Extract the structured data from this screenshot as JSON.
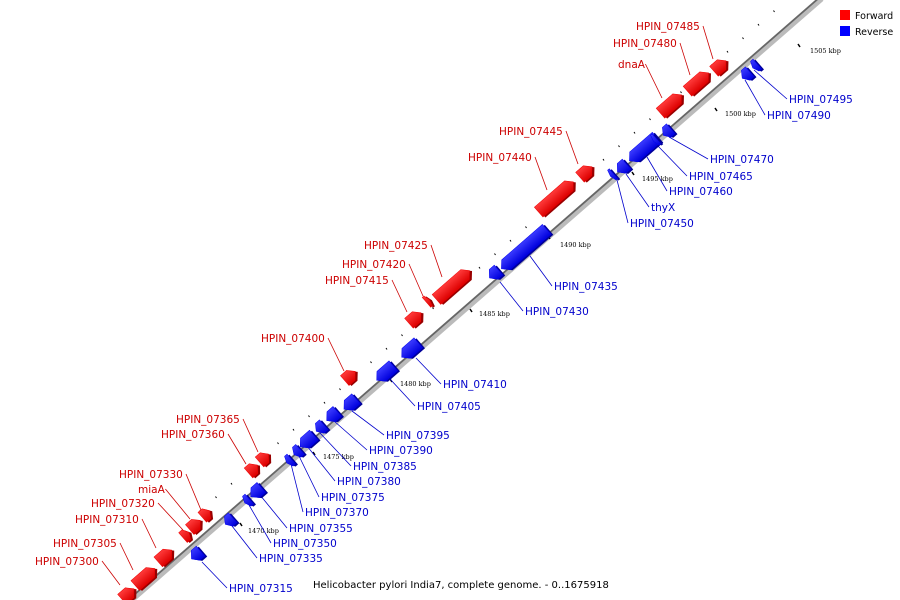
{
  "legend": [
    {
      "label": "Forward",
      "color": "#ff0000"
    },
    {
      "label": "Reverse",
      "color": "#0000ff"
    }
  ],
  "caption": "Helicobacter pylori India7, complete genome. - 0..1675918",
  "tick_labels": [
    "1470 kbp",
    "1475 kbp",
    "1480 kbp",
    "1485 kbp",
    "1490 kbp",
    "1495 kbp",
    "1500 kbp",
    "1505 kbp"
  ],
  "genes": [
    {
      "name": "HPIN_07300",
      "strand": "forward"
    },
    {
      "name": "HPIN_07305",
      "strand": "forward"
    },
    {
      "name": "HPIN_07310",
      "strand": "forward"
    },
    {
      "name": "HPIN_07315",
      "strand": "reverse"
    },
    {
      "name": "HPIN_07320",
      "strand": "forward"
    },
    {
      "name": "miaA",
      "strand": "forward"
    },
    {
      "name": "HPIN_07330",
      "strand": "forward"
    },
    {
      "name": "HPIN_07335",
      "strand": "reverse"
    },
    {
      "name": "HPIN_07350",
      "strand": "reverse"
    },
    {
      "name": "HPIN_07355",
      "strand": "reverse"
    },
    {
      "name": "HPIN_07360",
      "strand": "forward"
    },
    {
      "name": "HPIN_07365",
      "strand": "forward"
    },
    {
      "name": "HPIN_07370",
      "strand": "reverse"
    },
    {
      "name": "HPIN_07375",
      "strand": "reverse"
    },
    {
      "name": "HPIN_07380",
      "strand": "reverse"
    },
    {
      "name": "HPIN_07385",
      "strand": "reverse"
    },
    {
      "name": "HPIN_07390",
      "strand": "reverse"
    },
    {
      "name": "HPIN_07395",
      "strand": "reverse"
    },
    {
      "name": "HPIN_07400",
      "strand": "forward"
    },
    {
      "name": "HPIN_07405",
      "strand": "reverse"
    },
    {
      "name": "HPIN_07410",
      "strand": "reverse"
    },
    {
      "name": "HPIN_07415",
      "strand": "forward"
    },
    {
      "name": "HPIN_07420",
      "strand": "forward"
    },
    {
      "name": "HPIN_07425",
      "strand": "forward"
    },
    {
      "name": "HPIN_07430",
      "strand": "reverse"
    },
    {
      "name": "HPIN_07435",
      "strand": "reverse"
    },
    {
      "name": "HPIN_07440",
      "strand": "forward"
    },
    {
      "name": "HPIN_07445",
      "strand": "forward"
    },
    {
      "name": "HPIN_07450",
      "strand": "reverse"
    },
    {
      "name": "thyX",
      "strand": "reverse"
    },
    {
      "name": "HPIN_07460",
      "strand": "reverse"
    },
    {
      "name": "HPIN_07465",
      "strand": "reverse"
    },
    {
      "name": "HPIN_07470",
      "strand": "reverse"
    },
    {
      "name": "dnaA",
      "strand": "forward"
    },
    {
      "name": "HPIN_07480",
      "strand": "forward"
    },
    {
      "name": "HPIN_07485",
      "strand": "forward"
    },
    {
      "name": "HPIN_07490",
      "strand": "reverse"
    },
    {
      "name": "HPIN_07495",
      "strand": "reverse"
    }
  ]
}
